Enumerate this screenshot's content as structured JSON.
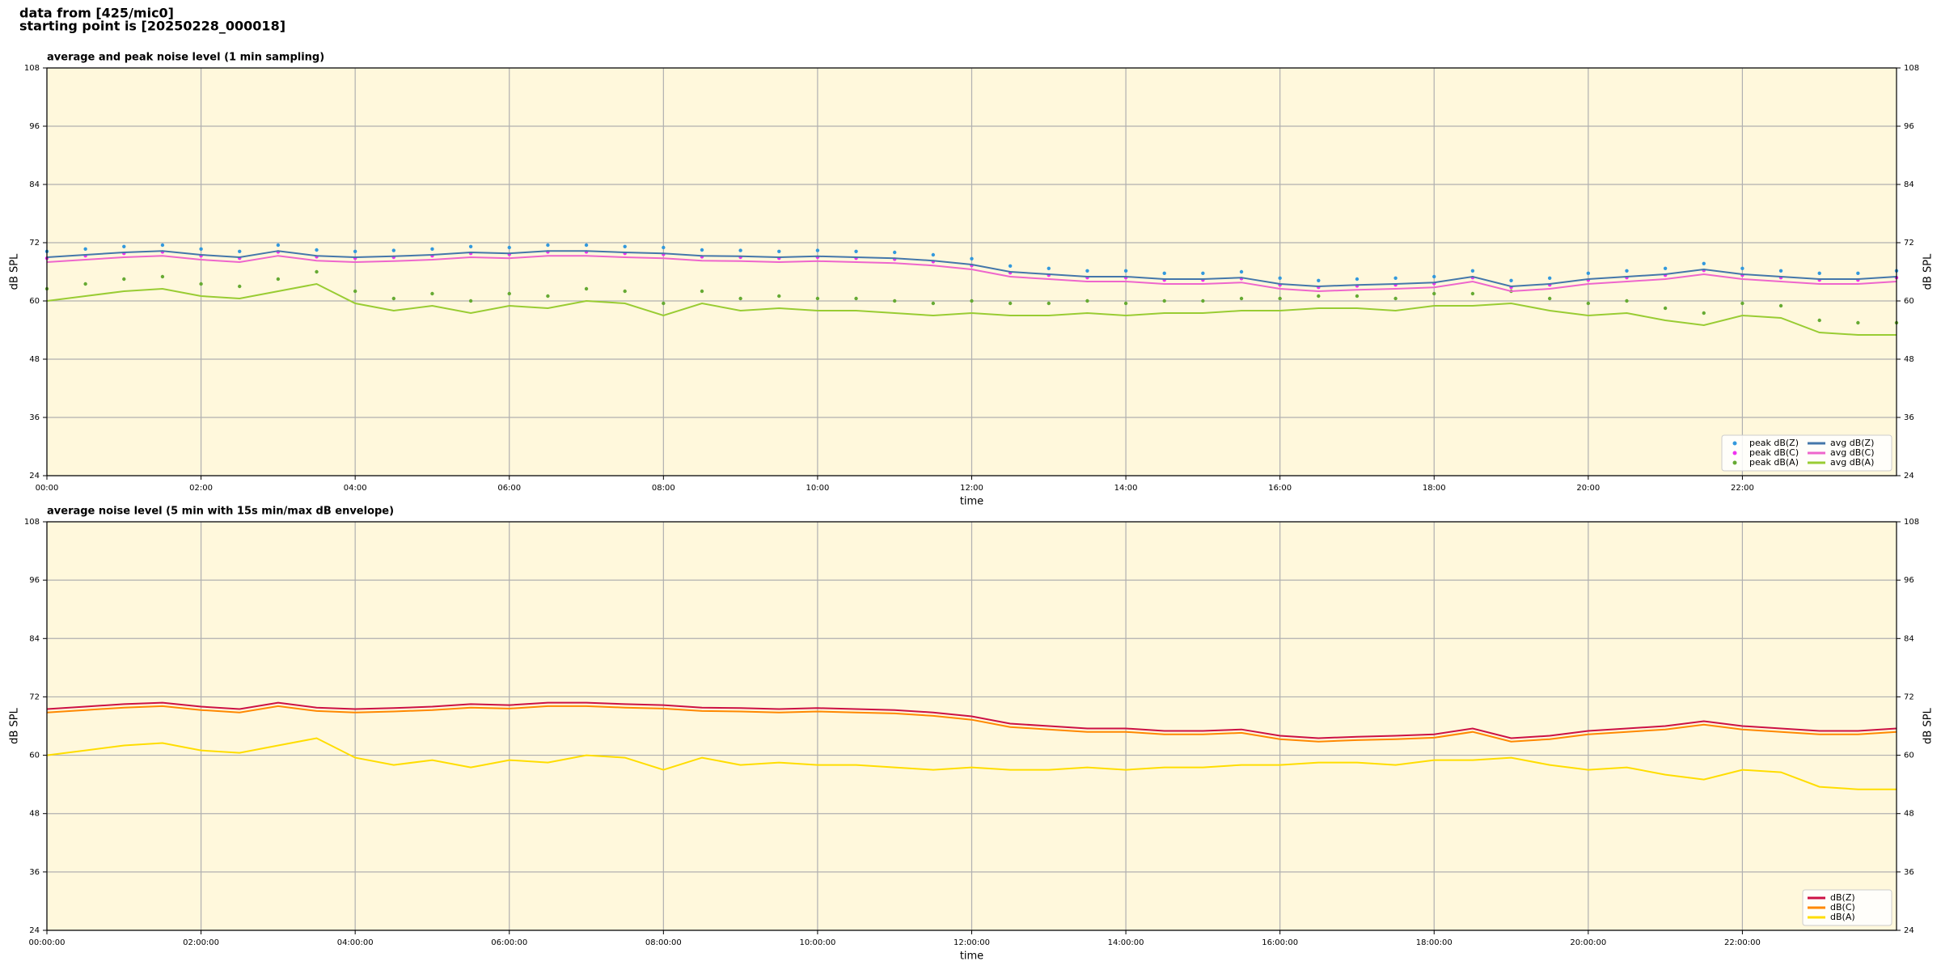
{
  "header": {
    "line1": "data from [425/mic0]",
    "line2": "starting point is [20250228_000018]"
  },
  "chart_data": [
    {
      "type": "line",
      "title": "average and peak noise level (1 min sampling)",
      "xlabel": "time",
      "ylabel": "dB SPL",
      "xlim": [
        0,
        24
      ],
      "ylim": [
        24,
        108
      ],
      "yticks": [
        24,
        36,
        48,
        60,
        72,
        84,
        96,
        108
      ],
      "xticks": [
        {
          "value": 0,
          "label": "00:00"
        },
        {
          "value": 2,
          "label": "02:00"
        },
        {
          "value": 4,
          "label": "04:00"
        },
        {
          "value": 6,
          "label": "06:00"
        },
        {
          "value": 8,
          "label": "08:00"
        },
        {
          "value": 10,
          "label": "10:00"
        },
        {
          "value": 12,
          "label": "12:00"
        },
        {
          "value": 14,
          "label": "14:00"
        },
        {
          "value": 16,
          "label": "16:00"
        },
        {
          "value": 18,
          "label": "18:00"
        },
        {
          "value": 20,
          "label": "20:00"
        },
        {
          "value": 22,
          "label": "22:00"
        }
      ],
      "grid": true,
      "legend": "lower right",
      "legend_columns": 2,
      "background": "#fff8dc",
      "x": [
        0,
        0.5,
        1,
        1.5,
        2,
        2.5,
        3,
        3.5,
        4,
        4.5,
        5,
        5.5,
        6,
        6.5,
        7,
        7.5,
        8,
        8.5,
        9,
        9.5,
        10,
        10.5,
        11,
        11.5,
        12,
        12.5,
        13,
        13.5,
        14,
        14.5,
        15,
        15.5,
        16,
        16.5,
        17,
        17.5,
        18,
        18.5,
        19,
        19.5,
        20,
        20.5,
        21,
        21.5,
        22,
        22.5,
        23,
        23.5,
        24
      ],
      "series": [
        {
          "name": "peak dB(Z)",
          "type": "scatter",
          "color": "#3399dd",
          "values": [
            70.2,
            70.7,
            71.2,
            71.5,
            70.7,
            70.2,
            71.5,
            70.5,
            70.2,
            70.4,
            70.7,
            71.2,
            71,
            71.5,
            71.5,
            71.2,
            71,
            70.5,
            70.4,
            70.2,
            70.4,
            70.2,
            70,
            69.5,
            68.7,
            67.2,
            66.7,
            66.2,
            66.2,
            65.7,
            65.7,
            66,
            64.7,
            64.2,
            64.5,
            64.7,
            65,
            66.2,
            64.2,
            64.7,
            65.7,
            66.2,
            66.7,
            67.7,
            66.7,
            66.2,
            65.7,
            65.7,
            66.2
          ]
        },
        {
          "name": "peak dB(C)",
          "type": "scatter",
          "color": "#ee33ee",
          "values": [
            68.8,
            69.3,
            69.8,
            70.1,
            69.3,
            68.8,
            70.1,
            69.1,
            68.8,
            69,
            69.3,
            69.8,
            69.6,
            70.1,
            70.1,
            69.8,
            69.6,
            69.1,
            69,
            68.8,
            69,
            68.8,
            68.6,
            68.1,
            67.3,
            65.8,
            65.3,
            64.8,
            64.8,
            64.3,
            64.3,
            64.6,
            63.3,
            62.8,
            63.1,
            63.3,
            63.6,
            64.8,
            62.8,
            63.3,
            64.3,
            64.8,
            65.3,
            66.3,
            65.3,
            64.8,
            64.3,
            64.3,
            64.8
          ]
        },
        {
          "name": "peak dB(A)",
          "type": "scatter",
          "color": "#66aa33",
          "values": [
            62.5,
            63.5,
            64.5,
            65,
            63.5,
            63,
            64.5,
            66,
            62,
            60.5,
            61.5,
            60,
            61.5,
            61,
            62.5,
            62,
            59.5,
            62,
            60.5,
            61,
            60.5,
            60.5,
            60,
            59.5,
            60,
            59.5,
            59.5,
            60,
            59.5,
            60,
            60,
            60.5,
            60.5,
            61,
            61,
            60.5,
            61.5,
            61.5,
            62,
            60.5,
            59.5,
            60,
            58.5,
            57.5,
            59.5,
            59,
            56,
            55.5,
            55.5
          ]
        },
        {
          "name": "avg dB(Z)",
          "type": "line",
          "color": "#4477aa",
          "values": [
            69,
            69.5,
            70,
            70.3,
            69.5,
            69,
            70.3,
            69.3,
            69,
            69.2,
            69.5,
            70,
            69.8,
            70.3,
            70.3,
            70,
            69.8,
            69.3,
            69.2,
            69,
            69.2,
            69,
            68.8,
            68.3,
            67.5,
            66,
            65.5,
            65,
            65,
            64.5,
            64.5,
            64.8,
            63.5,
            63,
            63.3,
            63.5,
            63.8,
            65,
            63,
            63.5,
            64.5,
            65,
            65.5,
            66.5,
            65.5,
            65,
            64.5,
            64.5,
            65
          ]
        },
        {
          "name": "avg dB(C)",
          "type": "line",
          "color": "#ee66cc",
          "values": [
            68,
            68.5,
            69,
            69.3,
            68.5,
            68,
            69.3,
            68.3,
            68,
            68.2,
            68.5,
            69,
            68.8,
            69.3,
            69.3,
            69,
            68.8,
            68.3,
            68.2,
            68,
            68.2,
            68,
            67.8,
            67.3,
            66.5,
            65,
            64.5,
            64,
            64,
            63.5,
            63.5,
            63.8,
            62.5,
            62,
            62.3,
            62.5,
            62.8,
            64,
            62,
            62.5,
            63.5,
            64,
            64.5,
            65.5,
            64.5,
            64,
            63.5,
            63.5,
            64
          ]
        },
        {
          "name": "avg dB(A)",
          "type": "line",
          "color": "#99cc33",
          "values": [
            60,
            61,
            62,
            62.5,
            61,
            60.5,
            62,
            63.5,
            59.5,
            58,
            59,
            57.5,
            59,
            58.5,
            60,
            59.5,
            57,
            59.5,
            58,
            58.5,
            58,
            58,
            57.5,
            57,
            57.5,
            57,
            57,
            57.5,
            57,
            57.5,
            57.5,
            58,
            58,
            58.5,
            58.5,
            58,
            59,
            59,
            59.5,
            58,
            57,
            57.5,
            56,
            55,
            57,
            56.5,
            53.5,
            53,
            53
          ]
        }
      ]
    },
    {
      "type": "line",
      "title": "average noise level (5 min with 15s min/max dB envelope)",
      "xlabel": "time",
      "ylabel": "dB SPL",
      "xlim": [
        0,
        24
      ],
      "ylim": [
        24,
        108
      ],
      "yticks": [
        24,
        36,
        48,
        60,
        72,
        84,
        96,
        108
      ],
      "xticks": [
        {
          "value": 0,
          "label": "00:00:00"
        },
        {
          "value": 2,
          "label": "02:00:00"
        },
        {
          "value": 4,
          "label": "04:00:00"
        },
        {
          "value": 6,
          "label": "06:00:00"
        },
        {
          "value": 8,
          "label": "08:00:00"
        },
        {
          "value": 10,
          "label": "10:00:00"
        },
        {
          "value": 12,
          "label": "12:00:00"
        },
        {
          "value": 14,
          "label": "14:00:00"
        },
        {
          "value": 16,
          "label": "16:00:00"
        },
        {
          "value": 18,
          "label": "18:00:00"
        },
        {
          "value": 20,
          "label": "20:00:00"
        },
        {
          "value": 22,
          "label": "22:00:00"
        }
      ],
      "grid": true,
      "legend": "lower right",
      "legend_columns": 1,
      "background": "#fff8dc",
      "x": [
        0,
        0.5,
        1,
        1.5,
        2,
        2.5,
        3,
        3.5,
        4,
        4.5,
        5,
        5.5,
        6,
        6.5,
        7,
        7.5,
        8,
        8.5,
        9,
        9.5,
        10,
        10.5,
        11,
        11.5,
        12,
        12.5,
        13,
        13.5,
        14,
        14.5,
        15,
        15.5,
        16,
        16.5,
        17,
        17.5,
        18,
        18.5,
        19,
        19.5,
        20,
        20.5,
        21,
        21.5,
        22,
        22.5,
        23,
        23.5,
        24
      ],
      "series": [
        {
          "name": "dB(Z)",
          "type": "line",
          "color": "#cc1144",
          "values": [
            69.5,
            70,
            70.5,
            70.8,
            70,
            69.5,
            70.8,
            69.8,
            69.5,
            69.7,
            70,
            70.5,
            70.3,
            70.8,
            70.8,
            70.5,
            70.3,
            69.8,
            69.7,
            69.5,
            69.7,
            69.5,
            69.3,
            68.8,
            68,
            66.5,
            66,
            65.5,
            65.5,
            65,
            65,
            65.3,
            64,
            63.5,
            63.8,
            64,
            64.3,
            65.5,
            63.5,
            64,
            65,
            65.5,
            66,
            67,
            66,
            65.5,
            65,
            65,
            65.5
          ]
        },
        {
          "name": "dB(C)",
          "type": "line",
          "color": "#ff8800",
          "values": [
            68.8,
            69.3,
            69.8,
            70.1,
            69.3,
            68.8,
            70.1,
            69.1,
            68.8,
            69,
            69.3,
            69.8,
            69.6,
            70.1,
            70.1,
            69.8,
            69.6,
            69.1,
            69,
            68.8,
            69,
            68.8,
            68.6,
            68.1,
            67.3,
            65.8,
            65.3,
            64.8,
            64.8,
            64.3,
            64.3,
            64.6,
            63.3,
            62.8,
            63.1,
            63.3,
            63.6,
            64.8,
            62.8,
            63.3,
            64.3,
            64.8,
            65.3,
            66.3,
            65.3,
            64.8,
            64.3,
            64.3,
            64.8
          ]
        },
        {
          "name": "dB(A)",
          "type": "line",
          "color": "#ffdd00",
          "values": [
            60,
            61,
            62,
            62.5,
            61,
            60.5,
            62,
            63.5,
            59.5,
            58,
            59,
            57.5,
            59,
            58.5,
            60,
            59.5,
            57,
            59.5,
            58,
            58.5,
            58,
            58,
            57.5,
            57,
            57.5,
            57,
            57,
            57.5,
            57,
            57.5,
            57.5,
            58,
            58,
            58.5,
            58.5,
            58,
            59,
            59,
            59.5,
            58,
            57,
            57.5,
            56,
            55,
            57,
            56.5,
            53.5,
            53,
            53
          ]
        }
      ]
    }
  ]
}
